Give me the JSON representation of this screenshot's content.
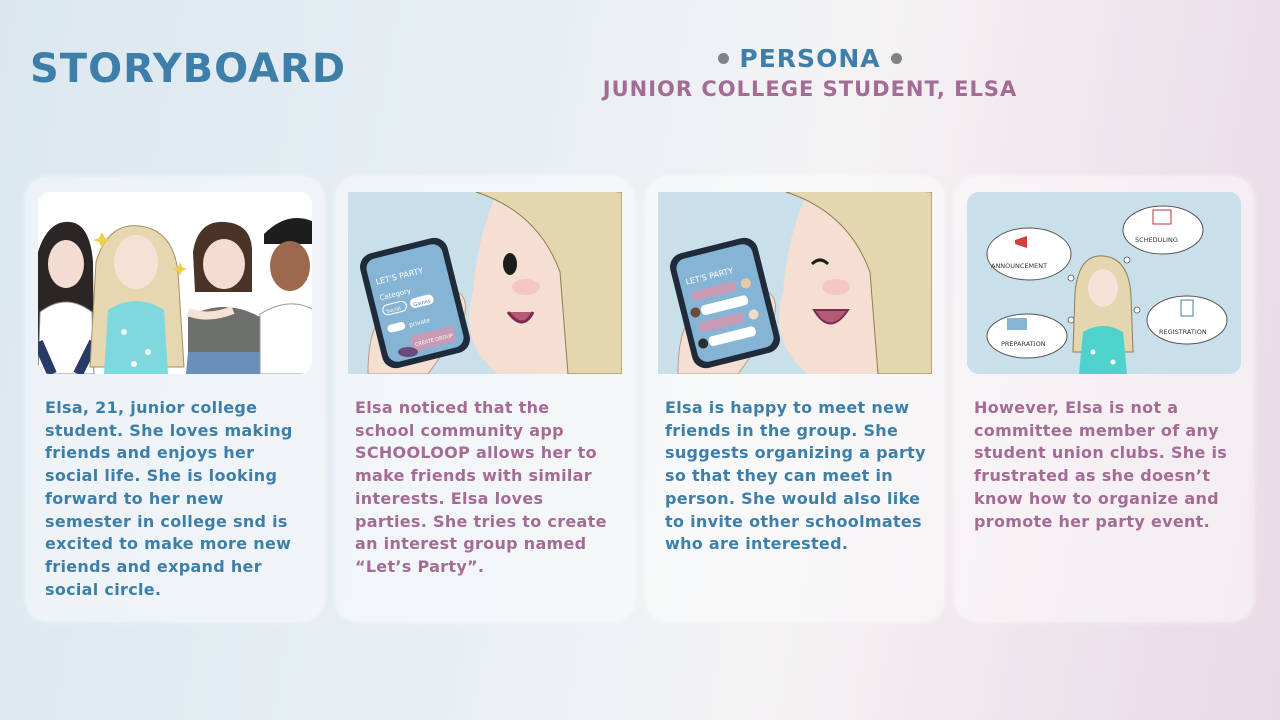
{
  "header": {
    "title": "STORYBOARD",
    "persona_label": "PERSONA",
    "persona_subtitle": "JUNIOR COLLEGE STUDENT, ELSA"
  },
  "panels": [
    {
      "text": "Elsa, 21, junior college\nstudent. She loves making\nfriends and enjoys her\nsocial life. She is looking\nforward to her new\nsemester in college snd is\nexcited to make more new\nfriends and expand her\nsocial circle.",
      "text_color": "#3d7fa8"
    },
    {
      "text": "Elsa noticed that the\nschool community app\nSCHOOLOOP allows her to\nmake friends with similar\ninterests. Elsa loves\nparties. She tries to create\nan interest group named\n“Let’s Party”.",
      "text_color": "#a46b94",
      "image_labels": {
        "app_heading": "LET'S PARTY",
        "category": "Category",
        "option_a": "Social",
        "option_b": "Games",
        "privacy": "private",
        "button": "CREATE GROUP"
      }
    },
    {
      "text": "Elsa is happy to meet new\nfriends in the group.  She\nsuggests organizing a party\nso that they can meet in\nperson. She would also like\nto invite other schoolmates\nwho are interested.",
      "text_color": "#3d7fa8",
      "image_labels": {
        "app_heading": "LET'S PARTY"
      }
    },
    {
      "text": "However, Elsa is not a\ncommittee member of any\nstudent union clubs. She is\nfrustrated as she doesn’t\nknow how to organize and\npromote her party event.",
      "text_color": "#a46b94",
      "image_labels": {
        "bubble_1": "ANNOUNCEMENT",
        "bubble_2": "SCHEDULING",
        "bubble_3": "PREPARATION",
        "bubble_4": "REGISTRATION"
      }
    }
  ],
  "colors": {
    "accent_blue": "#3d7fa8",
    "accent_pink": "#a46b94",
    "panel_sky": "#c9dfea"
  }
}
